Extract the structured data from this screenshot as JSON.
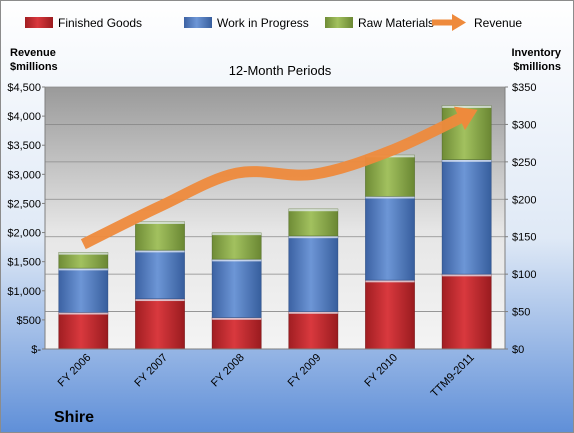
{
  "chart_data": {
    "type": "bar",
    "stacked": true,
    "subtitle": "12-Month Periods",
    "company": "Shire",
    "y_left_label": [
      "Revenue",
      "$millions"
    ],
    "y_right_label": [
      "Inventory",
      "$millions"
    ],
    "categories": [
      "FY 2006",
      "FY 2007",
      "FY 2008",
      "FY 2009",
      "FY 2010",
      "TTM9-2011"
    ],
    "y_left_ticks": [
      "$-",
      "$500",
      "$1,000",
      "$1,500",
      "$2,000",
      "$2,500",
      "$3,000",
      "$3,500",
      "$4,000",
      "$4,500"
    ],
    "y_right_ticks": [
      "$0",
      "$50",
      "$100",
      "$150",
      "$200",
      "$250",
      "$300",
      "$350"
    ],
    "y_left_lim": [
      0,
      4500
    ],
    "y_right_lim": [
      0,
      350
    ],
    "series": [
      {
        "name": "Finished Goods",
        "axis": "right",
        "color": "#c0282d",
        "values": [
          49,
          67,
          42,
          50,
          92,
          100
        ]
      },
      {
        "name": "Work in Progress",
        "axis": "right",
        "color": "#4f7bbf",
        "values": [
          59,
          65,
          78,
          101,
          112,
          153
        ]
      },
      {
        "name": "Raw Materials",
        "axis": "right",
        "color": "#8aaa4a",
        "values": [
          21,
          38,
          35,
          36,
          55,
          72
        ]
      },
      {
        "name": "Revenue",
        "axis": "left",
        "type": "line",
        "color": "#ee8a3c",
        "values": [
          1800,
          2450,
          3020,
          3000,
          3400,
          4020
        ]
      }
    ],
    "grid": true,
    "legend_position": "top"
  }
}
